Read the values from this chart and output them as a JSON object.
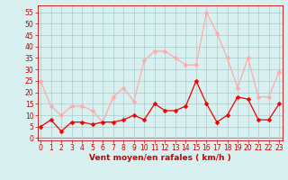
{
  "x": [
    0,
    1,
    2,
    3,
    4,
    5,
    6,
    7,
    8,
    9,
    10,
    11,
    12,
    13,
    14,
    15,
    16,
    17,
    18,
    19,
    20,
    21,
    22,
    23
  ],
  "wind_avg": [
    5,
    8,
    3,
    7,
    7,
    6,
    7,
    7,
    8,
    10,
    8,
    15,
    12,
    12,
    14,
    25,
    15,
    7,
    10,
    18,
    17,
    8,
    8,
    15
  ],
  "wind_gust": [
    25,
    14,
    10,
    14,
    14,
    12,
    7,
    18,
    22,
    16,
    34,
    38,
    38,
    35,
    32,
    32,
    55,
    46,
    35,
    22,
    35,
    18,
    18,
    29
  ],
  "xlabel": "Vent moyen/en rafales ( km/h )",
  "yticks": [
    0,
    5,
    10,
    15,
    20,
    25,
    30,
    35,
    40,
    45,
    50,
    55
  ],
  "xticks": [
    0,
    1,
    2,
    3,
    4,
    5,
    6,
    7,
    8,
    9,
    10,
    11,
    12,
    13,
    14,
    15,
    16,
    17,
    18,
    19,
    20,
    21,
    22,
    23
  ],
  "ylim": [
    -1,
    58
  ],
  "xlim": [
    -0.3,
    23.3
  ],
  "avg_color": "#ee0000",
  "gust_color": "#ffaaaa",
  "bg_color": "#d8f0f0",
  "grid_color": "#aacccc",
  "label_color": "#cc0000",
  "spine_color": "#cc0000",
  "markersize": 2.5,
  "linewidth": 0.9,
  "xlabel_fontsize": 6.5,
  "tick_fontsize": 5.5
}
